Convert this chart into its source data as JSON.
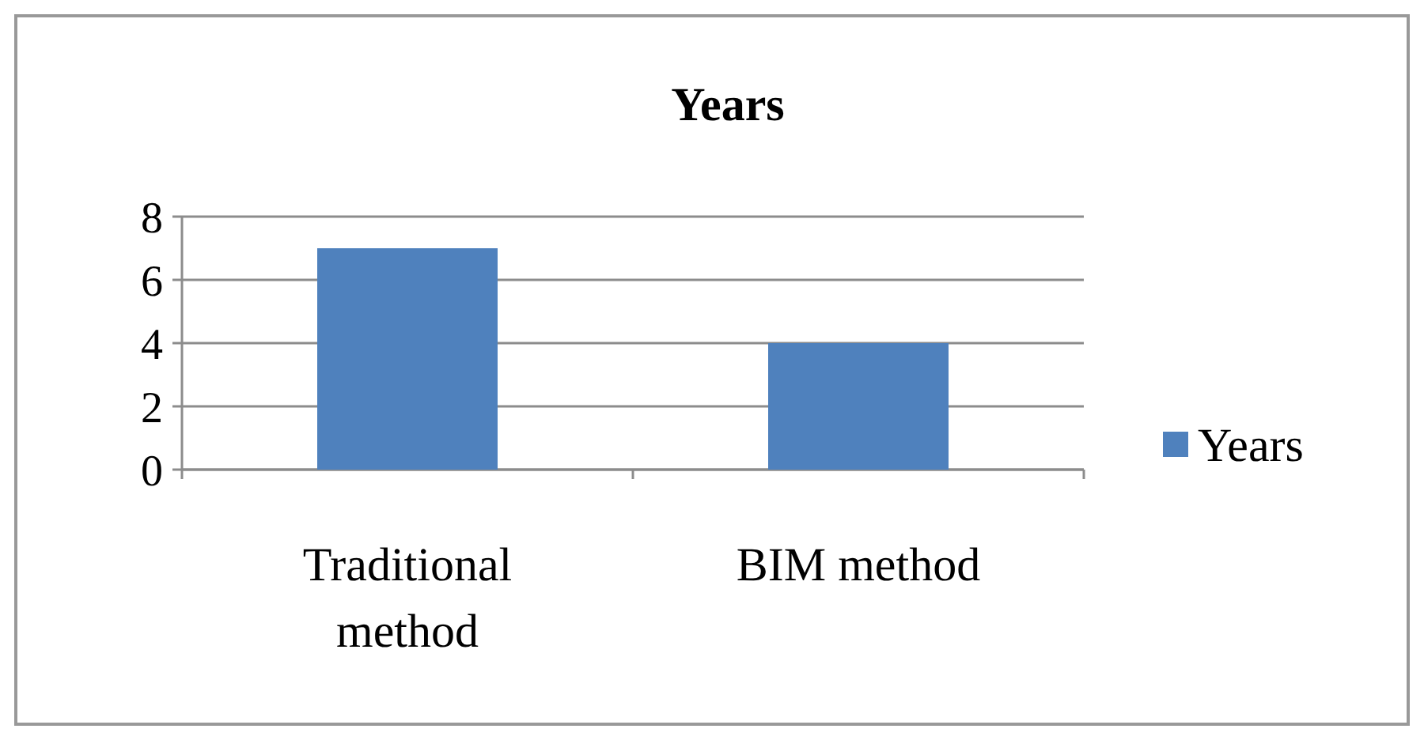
{
  "chart_data": {
    "type": "bar",
    "title": "Years",
    "categories": [
      "Traditional method",
      "BIM method"
    ],
    "series": [
      {
        "name": "Years",
        "color": "#4f81bd",
        "values": [
          7,
          4
        ]
      }
    ],
    "ylim": [
      0,
      8
    ],
    "yticks": [
      0,
      2,
      4,
      6,
      8
    ],
    "grid": "y",
    "legend": "right"
  }
}
